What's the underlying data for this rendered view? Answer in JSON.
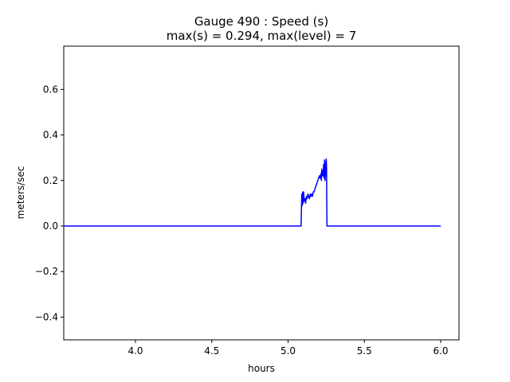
{
  "chart_data": {
    "type": "line",
    "title": "Gauge 490 : Speed (s)",
    "subtitle": "max(s) =   0.294,    max(level) = 7",
    "xlabel": "hours",
    "ylabel": "meters/sec",
    "xlim": [
      3.53,
      6.12
    ],
    "ylim": [
      -0.5,
      0.79
    ],
    "xticks": [
      4.0,
      4.5,
      5.0,
      5.5,
      6.0
    ],
    "xtick_labels": [
      "4.0",
      "4.5",
      "5.0",
      "5.5",
      "6.0"
    ],
    "yticks": [
      -0.4,
      -0.2,
      0.0,
      0.2,
      0.4,
      0.6
    ],
    "ytick_labels": [
      "−0.4",
      "−0.2",
      "0.0",
      "0.2",
      "0.4",
      "0.6"
    ],
    "grid": false,
    "series": [
      {
        "color": "#0000ff",
        "x": [
          3.53,
          5.085,
          5.087,
          5.09,
          5.093,
          5.096,
          5.099,
          5.102,
          5.106,
          5.11,
          5.115,
          5.12,
          5.125,
          5.13,
          5.135,
          5.14,
          5.145,
          5.15,
          5.155,
          5.16,
          5.165,
          5.17,
          5.175,
          5.18,
          5.185,
          5.19,
          5.195,
          5.2,
          5.205,
          5.21,
          5.215,
          5.218,
          5.221,
          5.224,
          5.227,
          5.23,
          5.233,
          5.236,
          5.239,
          5.242,
          5.245,
          5.248,
          5.25,
          5.252,
          5.253,
          5.255,
          5.26,
          6.0
        ],
        "y": [
          0.0,
          0.0,
          0.06,
          0.14,
          0.09,
          0.15,
          0.1,
          0.15,
          0.11,
          0.12,
          0.1,
          0.13,
          0.12,
          0.14,
          0.13,
          0.12,
          0.14,
          0.13,
          0.14,
          0.13,
          0.15,
          0.15,
          0.16,
          0.17,
          0.18,
          0.19,
          0.2,
          0.21,
          0.22,
          0.21,
          0.23,
          0.2,
          0.25,
          0.22,
          0.24,
          0.22,
          0.27,
          0.21,
          0.29,
          0.2,
          0.28,
          0.22,
          0.294,
          0.26,
          0.15,
          0.0,
          0.0,
          0.0
        ]
      }
    ]
  }
}
